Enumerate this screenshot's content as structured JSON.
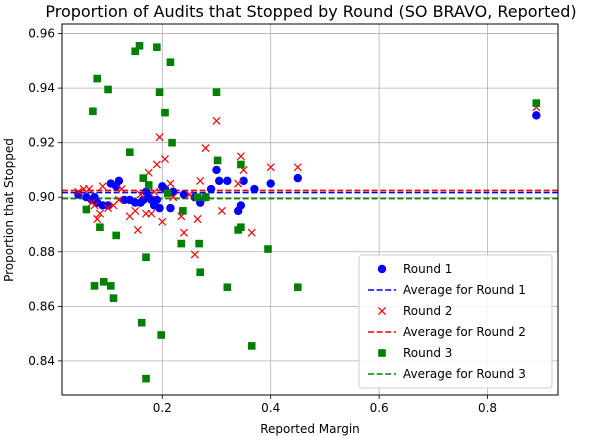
{
  "chart_data": {
    "type": "scatter",
    "title": "Proportion of Audits that Stopped by Round (SO BRAVO, Reported)",
    "xlabel": "Reported Margin",
    "ylabel": "Proportion that Stopped",
    "xlim": [
      0.015,
      0.93
    ],
    "ylim": [
      0.8275,
      0.9635
    ],
    "xticks": [
      0.2,
      0.4,
      0.6,
      0.8
    ],
    "xtick_labels": [
      "0.2",
      "0.4",
      "0.6",
      "0.8"
    ],
    "yticks": [
      0.84,
      0.86,
      0.88,
      0.9,
      0.92,
      0.94,
      0.96
    ],
    "ytick_labels": [
      "0.84",
      "0.86",
      "0.88",
      "0.90",
      "0.92",
      "0.94",
      "0.96"
    ],
    "grid": true,
    "legend_position": "lower-right",
    "series": [
      {
        "name": "Round 1",
        "marker": "circle",
        "color": "#0000ff",
        "points": [
          [
            0.045,
            0.901
          ],
          [
            0.06,
            0.9
          ],
          [
            0.07,
            0.899
          ],
          [
            0.075,
            0.9
          ],
          [
            0.08,
            0.898
          ],
          [
            0.09,
            0.897
          ],
          [
            0.1,
            0.897
          ],
          [
            0.105,
            0.905
          ],
          [
            0.115,
            0.904
          ],
          [
            0.12,
            0.906
          ],
          [
            0.13,
            0.899
          ],
          [
            0.14,
            0.899
          ],
          [
            0.15,
            0.898
          ],
          [
            0.16,
            0.898
          ],
          [
            0.165,
            0.899
          ],
          [
            0.17,
            0.902
          ],
          [
            0.175,
            0.9
          ],
          [
            0.18,
            0.899
          ],
          [
            0.185,
            0.897
          ],
          [
            0.19,
            0.899
          ],
          [
            0.195,
            0.896
          ],
          [
            0.2,
            0.904
          ],
          [
            0.205,
            0.903
          ],
          [
            0.215,
            0.896
          ],
          [
            0.22,
            0.902
          ],
          [
            0.24,
            0.901
          ],
          [
            0.26,
            0.9
          ],
          [
            0.27,
            0.898
          ],
          [
            0.28,
            0.9
          ],
          [
            0.29,
            0.903
          ],
          [
            0.3,
            0.91
          ],
          [
            0.305,
            0.906
          ],
          [
            0.32,
            0.906
          ],
          [
            0.34,
            0.895
          ],
          [
            0.345,
            0.897
          ],
          [
            0.35,
            0.906
          ],
          [
            0.37,
            0.903
          ],
          [
            0.4,
            0.905
          ],
          [
            0.45,
            0.907
          ],
          [
            0.89,
            0.93
          ]
        ]
      },
      {
        "name": "Average for Round 1",
        "line": "dashed",
        "color": "#0000ff",
        "y": 0.9017
      },
      {
        "name": "Round 2",
        "marker": "x",
        "color": "#ff0000",
        "points": [
          [
            0.045,
            0.902
          ],
          [
            0.055,
            0.903
          ],
          [
            0.065,
            0.903
          ],
          [
            0.07,
            0.898
          ],
          [
            0.075,
            0.897
          ],
          [
            0.08,
            0.892
          ],
          [
            0.085,
            0.894
          ],
          [
            0.09,
            0.904
          ],
          [
            0.1,
            0.896
          ],
          [
            0.11,
            0.897
          ],
          [
            0.12,
            0.899
          ],
          [
            0.125,
            0.903
          ],
          [
            0.14,
            0.893
          ],
          [
            0.15,
            0.895
          ],
          [
            0.155,
            0.888
          ],
          [
            0.16,
            0.901
          ],
          [
            0.165,
            0.907
          ],
          [
            0.17,
            0.894
          ],
          [
            0.175,
            0.909
          ],
          [
            0.18,
            0.894
          ],
          [
            0.185,
            0.902
          ],
          [
            0.19,
            0.912
          ],
          [
            0.195,
            0.922
          ],
          [
            0.2,
            0.891
          ],
          [
            0.205,
            0.914
          ],
          [
            0.215,
            0.905
          ],
          [
            0.22,
            0.9
          ],
          [
            0.235,
            0.893
          ],
          [
            0.24,
            0.887
          ],
          [
            0.25,
            0.901
          ],
          [
            0.26,
            0.879
          ],
          [
            0.265,
            0.892
          ],
          [
            0.27,
            0.906
          ],
          [
            0.28,
            0.918
          ],
          [
            0.3,
            0.928
          ],
          [
            0.31,
            0.895
          ],
          [
            0.34,
            0.905
          ],
          [
            0.345,
            0.915
          ],
          [
            0.35,
            0.91
          ],
          [
            0.365,
            0.887
          ],
          [
            0.4,
            0.911
          ],
          [
            0.45,
            0.911
          ],
          [
            0.89,
            0.933
          ]
        ]
      },
      {
        "name": "Average for Round 2",
        "line": "dashed",
        "color": "#ff0000",
        "y": 0.9025
      },
      {
        "name": "Round 3",
        "marker": "square",
        "color": "#008000",
        "points": [
          [
            0.06,
            0.8955
          ],
          [
            0.072,
            0.9315
          ],
          [
            0.075,
            0.8675
          ],
          [
            0.08,
            0.9435
          ],
          [
            0.085,
            0.889
          ],
          [
            0.092,
            0.869
          ],
          [
            0.1,
            0.9395
          ],
          [
            0.105,
            0.8675
          ],
          [
            0.11,
            0.863
          ],
          [
            0.115,
            0.886
          ],
          [
            0.14,
            0.9165
          ],
          [
            0.15,
            0.9535
          ],
          [
            0.158,
            0.9555
          ],
          [
            0.162,
            0.854
          ],
          [
            0.165,
            0.907
          ],
          [
            0.17,
            0.878
          ],
          [
            0.17,
            0.8335
          ],
          [
            0.175,
            0.9045
          ],
          [
            0.19,
            0.955
          ],
          [
            0.195,
            0.9385
          ],
          [
            0.198,
            0.8495
          ],
          [
            0.205,
            0.931
          ],
          [
            0.21,
            0.9015
          ],
          [
            0.215,
            0.9495
          ],
          [
            0.218,
            0.92
          ],
          [
            0.235,
            0.883
          ],
          [
            0.238,
            0.895
          ],
          [
            0.265,
            0.9
          ],
          [
            0.268,
            0.883
          ],
          [
            0.27,
            0.8725
          ],
          [
            0.28,
            0.9
          ],
          [
            0.3,
            0.9385
          ],
          [
            0.302,
            0.9135
          ],
          [
            0.32,
            0.867
          ],
          [
            0.34,
            0.888
          ],
          [
            0.345,
            0.912
          ],
          [
            0.345,
            0.889
          ],
          [
            0.365,
            0.8455
          ],
          [
            0.395,
            0.881
          ],
          [
            0.45,
            0.867
          ],
          [
            0.89,
            0.9345
          ]
        ]
      },
      {
        "name": "Average for Round 3",
        "line": "dashed",
        "color": "#008000",
        "y": 0.8995
      }
    ]
  }
}
